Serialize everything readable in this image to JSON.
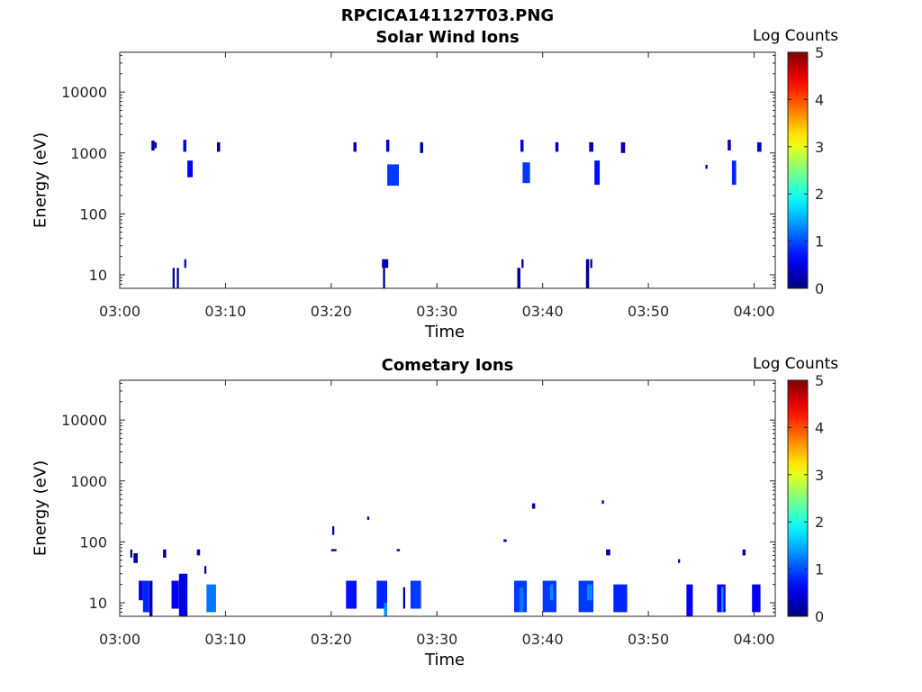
{
  "title": "RPCICA141127T03.PNG",
  "chart_data": [
    {
      "type": "heatmap",
      "title": "Solar Wind Ions",
      "xlabel": "Time",
      "ylabel": "Energy (eV)",
      "x_ticks": [
        "03:00",
        "03:10",
        "03:20",
        "03:30",
        "03:40",
        "03:50",
        "04:00"
      ],
      "xlim": [
        "03:00",
        "04:02"
      ],
      "y_scale": "log",
      "y_ticks": [
        10,
        100,
        1000,
        10000
      ],
      "ylim": [
        6,
        45000
      ],
      "colorbar": {
        "label": "Log Counts",
        "range": [
          0,
          5
        ],
        "ticks": [
          0,
          1,
          2,
          3,
          4,
          5
        ]
      },
      "cells": [
        {
          "t": 3.0,
          "dt": 0.3,
          "e": [
            1100,
            1600
          ],
          "v": 0.2
        },
        {
          "t": 3.3,
          "dt": 0.2,
          "e": [
            1200,
            1500
          ],
          "v": 0.1
        },
        {
          "t": 6.0,
          "dt": 0.3,
          "e": [
            1050,
            1650
          ],
          "v": 0.5
        },
        {
          "t": 6.4,
          "dt": 0.5,
          "e": [
            400,
            750
          ],
          "v": 0.6
        },
        {
          "t": 9.2,
          "dt": 0.3,
          "e": [
            1050,
            1500
          ],
          "v": 0.1
        },
        {
          "t": 5.0,
          "dt": 0.2,
          "e": [
            6,
            13
          ],
          "v": 0.1
        },
        {
          "t": 5.4,
          "dt": 0.2,
          "e": [
            6,
            13
          ],
          "v": 0.1
        },
        {
          "t": 6.1,
          "dt": 0.2,
          "e": [
            13,
            18
          ],
          "v": 0.3
        },
        {
          "t": 22.1,
          "dt": 0.3,
          "e": [
            1050,
            1500
          ],
          "v": 0.3
        },
        {
          "t": 25.2,
          "dt": 0.3,
          "e": [
            1050,
            1650
          ],
          "v": 0.4
        },
        {
          "t": 25.3,
          "dt": 1.1,
          "e": [
            290,
            650
          ],
          "v": 0.9
        },
        {
          "t": 28.4,
          "dt": 0.3,
          "e": [
            1000,
            1500
          ],
          "v": 0.2
        },
        {
          "t": 24.8,
          "dt": 0.6,
          "e": [
            13,
            18
          ],
          "v": 0.3
        },
        {
          "t": 24.9,
          "dt": 0.2,
          "e": [
            6,
            13
          ],
          "v": 0.1
        },
        {
          "t": 37.9,
          "dt": 0.3,
          "e": [
            1050,
            1650
          ],
          "v": 0.5
        },
        {
          "t": 38.1,
          "dt": 0.7,
          "e": [
            320,
            700
          ],
          "v": 0.9
        },
        {
          "t": 41.2,
          "dt": 0.3,
          "e": [
            1050,
            1500
          ],
          "v": 0.3
        },
        {
          "t": 37.6,
          "dt": 0.3,
          "e": [
            6,
            13
          ],
          "v": 0.1
        },
        {
          "t": 38.0,
          "dt": 0.2,
          "e": [
            13,
            18
          ],
          "v": 0.2
        },
        {
          "t": 44.4,
          "dt": 0.4,
          "e": [
            1050,
            1500
          ],
          "v": 0.3
        },
        {
          "t": 44.9,
          "dt": 0.5,
          "e": [
            300,
            750
          ],
          "v": 0.7
        },
        {
          "t": 47.4,
          "dt": 0.4,
          "e": [
            1000,
            1500
          ],
          "v": 0.3
        },
        {
          "t": 44.1,
          "dt": 0.3,
          "e": [
            6,
            18
          ],
          "v": 0.1
        },
        {
          "t": 44.5,
          "dt": 0.2,
          "e": [
            13,
            18
          ],
          "v": 0.2
        },
        {
          "t": 55.4,
          "dt": 0.2,
          "e": [
            550,
            640
          ],
          "v": 0.2
        },
        {
          "t": 57.5,
          "dt": 0.3,
          "e": [
            1100,
            1650
          ],
          "v": 0.2
        },
        {
          "t": 57.9,
          "dt": 0.4,
          "e": [
            300,
            750
          ],
          "v": 0.8
        },
        {
          "t": 60.3,
          "dt": 0.4,
          "e": [
            1050,
            1500
          ],
          "v": 0.4
        }
      ]
    },
    {
      "type": "heatmap",
      "title": "Cometary Ions",
      "xlabel": "Time",
      "ylabel": "Energy (eV)",
      "x_ticks": [
        "03:00",
        "03:10",
        "03:20",
        "03:30",
        "03:40",
        "03:50",
        "04:00"
      ],
      "xlim": [
        "03:00",
        "04:02"
      ],
      "y_scale": "log",
      "y_ticks": [
        10,
        100,
        1000,
        10000
      ],
      "ylim": [
        6,
        45000
      ],
      "colorbar": {
        "label": "Log Counts",
        "range": [
          0,
          5
        ],
        "ticks": [
          0,
          1,
          2,
          3,
          4,
          5
        ]
      },
      "cells": [
        {
          "t": 1.8,
          "dt": 0.4,
          "e": [
            11,
            23
          ],
          "v": 0.5
        },
        {
          "t": 2.2,
          "dt": 0.6,
          "e": [
            7,
            23
          ],
          "v": 0.8
        },
        {
          "t": 2.8,
          "dt": 0.3,
          "e": [
            6,
            23
          ],
          "v": 0.3
        },
        {
          "t": 1.0,
          "dt": 0.2,
          "e": [
            55,
            75
          ],
          "v": 0.1
        },
        {
          "t": 1.3,
          "dt": 0.4,
          "e": [
            45,
            65
          ],
          "v": 0.2
        },
        {
          "t": 4.1,
          "dt": 0.3,
          "e": [
            55,
            75
          ],
          "v": 0.1
        },
        {
          "t": 4.9,
          "dt": 0.7,
          "e": [
            8,
            23
          ],
          "v": 0.6
        },
        {
          "t": 5.6,
          "dt": 0.8,
          "e": [
            6,
            30
          ],
          "v": 0.5
        },
        {
          "t": 7.3,
          "dt": 0.3,
          "e": [
            60,
            75
          ],
          "v": 0.1
        },
        {
          "t": 8.2,
          "dt": 0.9,
          "e": [
            7,
            20
          ],
          "v": 1.2
        },
        {
          "t": 8.0,
          "dt": 0.2,
          "e": [
            30,
            40
          ],
          "v": 0.1
        },
        {
          "t": 20.1,
          "dt": 0.2,
          "e": [
            130,
            180
          ],
          "v": 0.2
        },
        {
          "t": 20.0,
          "dt": 0.5,
          "e": [
            70,
            76
          ],
          "v": 0.1
        },
        {
          "t": 21.4,
          "dt": 1.0,
          "e": [
            8,
            23
          ],
          "v": 0.7
        },
        {
          "t": 23.4,
          "dt": 0.2,
          "e": [
            230,
            260
          ],
          "v": 0.2
        },
        {
          "t": 24.3,
          "dt": 1.0,
          "e": [
            8,
            23
          ],
          "v": 0.8
        },
        {
          "t": 25.0,
          "dt": 0.3,
          "e": [
            6,
            10
          ],
          "v": 1.3
        },
        {
          "t": 26.8,
          "dt": 0.2,
          "e": [
            8,
            18
          ],
          "v": 0.2
        },
        {
          "t": 27.5,
          "dt": 1.0,
          "e": [
            8,
            23
          ],
          "v": 0.9
        },
        {
          "t": 26.2,
          "dt": 0.3,
          "e": [
            70,
            76
          ],
          "v": 0.1
        },
        {
          "t": 36.3,
          "dt": 0.3,
          "e": [
            100,
            110
          ],
          "v": 0.1
        },
        {
          "t": 37.3,
          "dt": 1.2,
          "e": [
            7,
            23
          ],
          "v": 0.9
        },
        {
          "t": 37.8,
          "dt": 0.4,
          "e": [
            7,
            18
          ],
          "v": 1.2
        },
        {
          "t": 39.0,
          "dt": 0.3,
          "e": [
            350,
            430
          ],
          "v": 0.2
        },
        {
          "t": 40.0,
          "dt": 1.3,
          "e": [
            7,
            23
          ],
          "v": 0.9
        },
        {
          "t": 40.7,
          "dt": 0.3,
          "e": [
            11,
            20
          ],
          "v": 1.3
        },
        {
          "t": 43.4,
          "dt": 1.4,
          "e": [
            7,
            23
          ],
          "v": 0.9
        },
        {
          "t": 44.2,
          "dt": 0.5,
          "e": [
            11,
            20
          ],
          "v": 1.3
        },
        {
          "t": 45.6,
          "dt": 0.2,
          "e": [
            420,
            480
          ],
          "v": 0.2
        },
        {
          "t": 46.0,
          "dt": 0.4,
          "e": [
            60,
            75
          ],
          "v": 0.1
        },
        {
          "t": 46.7,
          "dt": 1.3,
          "e": [
            7,
            20
          ],
          "v": 0.8
        },
        {
          "t": 52.8,
          "dt": 0.2,
          "e": [
            45,
            52
          ],
          "v": 0.1
        },
        {
          "t": 53.6,
          "dt": 0.6,
          "e": [
            6,
            20
          ],
          "v": 0.6
        },
        {
          "t": 56.5,
          "dt": 0.8,
          "e": [
            7,
            20
          ],
          "v": 0.6
        },
        {
          "t": 56.9,
          "dt": 0.2,
          "e": [
            7,
            18
          ],
          "v": 1.4
        },
        {
          "t": 58.9,
          "dt": 0.3,
          "e": [
            60,
            75
          ],
          "v": 0.2
        },
        {
          "t": 59.8,
          "dt": 0.8,
          "e": [
            7,
            20
          ],
          "v": 0.6
        }
      ]
    }
  ]
}
